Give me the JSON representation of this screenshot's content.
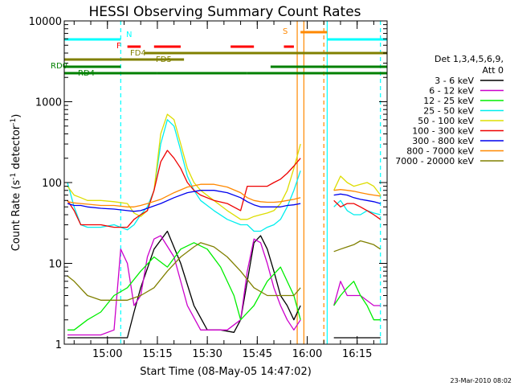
{
  "chart_data": {
    "type": "line",
    "title": "HESSI Observing Summary Count Rates",
    "xlabel": "Start Time (08-May-05 14:47:02)",
    "ylabel": "Count Rate (s⁻¹ detector⁻¹)",
    "ylabel_parts": {
      "main": "Count Rate (s",
      "exp1": "-1",
      "mid": " detector",
      "exp2": "-1",
      "end": ")"
    },
    "yscale": "log",
    "ylim": [
      1,
      10000
    ],
    "xlim": [
      "14:47:02",
      "16:24:00"
    ],
    "y_ticks": [
      {
        "value": 1,
        "label": "1"
      },
      {
        "value": 10,
        "label": "10"
      },
      {
        "value": 100,
        "label": "100"
      },
      {
        "value": 1000,
        "label": "1000"
      },
      {
        "value": 10000,
        "label": "10000"
      }
    ],
    "x_ticks": [
      {
        "value": "15:00",
        "label": "15:00"
      },
      {
        "value": "15:15",
        "label": "15:15"
      },
      {
        "value": "15:30",
        "label": "15:30"
      },
      {
        "value": "15:45",
        "label": "15:45"
      },
      {
        "value": "16:00",
        "label": "16:00"
      },
      {
        "value": "16:15",
        "label": "16:15"
      }
    ],
    "legend": {
      "placement": "right",
      "header": [
        "Det 1,3,4,5,6,9,",
        "Att 0"
      ]
    },
    "series": [
      {
        "name": "3 - 6 keV",
        "color": "#000000",
        "x": [
          "14:48",
          "14:50",
          "14:54",
          "14:58",
          "15:02",
          "15:06",
          "15:08",
          "15:10",
          "15:14",
          "15:18",
          "15:22",
          "15:26",
          "15:30",
          "15:34",
          "15:38",
          "15:40",
          "15:42",
          "15:44",
          "15:46",
          "15:48",
          "15:50",
          "15:52",
          "15:54",
          "15:56",
          "15:58",
          "16:06",
          "16:08",
          "16:10",
          "16:12",
          "16:14",
          "16:16",
          "16:18",
          "16:20",
          "16:22"
        ],
        "y": [
          1.2,
          1.2,
          1.2,
          1.2,
          1.2,
          1.2,
          2.5,
          5,
          15,
          25,
          10,
          3,
          1.5,
          1.5,
          1.4,
          2,
          6,
          18,
          22,
          15,
          8,
          4,
          3,
          2,
          3,
          null,
          1.2,
          1.2,
          1.2,
          1.2,
          1.2,
          1.2,
          1.2,
          1.2
        ]
      },
      {
        "name": "6 - 12 keV",
        "color": "#cc00cc",
        "x": [
          "14:48",
          "14:50",
          "14:54",
          "14:58",
          "15:02",
          "15:04",
          "15:06",
          "15:08",
          "15:10",
          "15:12",
          "15:14",
          "15:16",
          "15:20",
          "15:24",
          "15:28",
          "15:32",
          "15:36",
          "15:40",
          "15:42",
          "15:44",
          "15:46",
          "15:48",
          "15:50",
          "15:52",
          "15:54",
          "15:56",
          "15:58",
          "16:06",
          "16:08",
          "16:10",
          "16:12",
          "16:16",
          "16:20",
          "16:22"
        ],
        "y": [
          1.3,
          1.3,
          1.3,
          1.3,
          1.5,
          15,
          10,
          3,
          4,
          12,
          20,
          22,
          12,
          3,
          1.5,
          1.5,
          1.5,
          2,
          8,
          20,
          18,
          10,
          5,
          3,
          2,
          1.5,
          2,
          null,
          3,
          6,
          4,
          4,
          3,
          3
        ]
      },
      {
        "name": "12 - 25 keV",
        "color": "#00ee00",
        "x": [
          "14:48",
          "14:50",
          "14:54",
          "14:58",
          "15:02",
          "15:06",
          "15:10",
          "15:14",
          "15:18",
          "15:22",
          "15:26",
          "15:30",
          "15:34",
          "15:38",
          "15:40",
          "15:44",
          "15:48",
          "15:52",
          "15:56",
          "15:58",
          "16:06",
          "16:08",
          "16:10",
          "16:12",
          "16:14",
          "16:16",
          "16:18",
          "16:20",
          "16:22"
        ],
        "y": [
          1.5,
          1.5,
          2,
          2.5,
          4,
          5,
          8,
          12,
          9,
          15,
          18,
          15,
          9,
          4,
          2,
          3,
          6,
          9,
          4,
          2,
          null,
          3,
          4,
          5,
          6,
          4,
          3,
          2,
          2
        ]
      },
      {
        "name": "25 - 50 keV",
        "color": "#00eeee",
        "x": [
          "14:48",
          "14:50",
          "14:52",
          "14:54",
          "14:58",
          "15:02",
          "15:06",
          "15:08",
          "15:10",
          "15:12",
          "15:14",
          "15:16",
          "15:18",
          "15:20",
          "15:22",
          "15:24",
          "15:26",
          "15:28",
          "15:32",
          "15:36",
          "15:40",
          "15:42",
          "15:44",
          "15:46",
          "15:48",
          "15:50",
          "15:52",
          "15:54",
          "15:56",
          "15:58",
          "16:06",
          "16:08",
          "16:10",
          "16:12",
          "16:14",
          "16:16",
          "16:18",
          "16:20",
          "16:22"
        ],
        "y": [
          100,
          50,
          30,
          28,
          28,
          30,
          26,
          30,
          40,
          50,
          80,
          300,
          600,
          500,
          250,
          120,
          80,
          60,
          45,
          35,
          30,
          30,
          25,
          25,
          28,
          30,
          35,
          50,
          80,
          140,
          null,
          50,
          60,
          45,
          40,
          40,
          45,
          42,
          40
        ]
      },
      {
        "name": "50 - 100 keV",
        "color": "#dddd00",
        "x": [
          "14:48",
          "14:50",
          "14:52",
          "14:54",
          "14:58",
          "15:02",
          "15:06",
          "15:08",
          "15:10",
          "15:12",
          "15:14",
          "15:16",
          "15:18",
          "15:20",
          "15:22",
          "15:24",
          "15:26",
          "15:28",
          "15:32",
          "15:36",
          "15:40",
          "15:42",
          "15:44",
          "15:46",
          "15:48",
          "15:50",
          "15:52",
          "15:54",
          "15:56",
          "15:58",
          "16:06",
          "16:08",
          "16:10",
          "16:12",
          "16:14",
          "16:16",
          "16:18",
          "16:20",
          "16:22"
        ],
        "y": [
          90,
          70,
          65,
          60,
          60,
          58,
          55,
          42,
          38,
          45,
          80,
          400,
          700,
          600,
          300,
          150,
          100,
          80,
          60,
          45,
          35,
          35,
          38,
          40,
          42,
          45,
          55,
          80,
          150,
          300,
          null,
          80,
          120,
          100,
          90,
          95,
          100,
          90,
          70
        ]
      },
      {
        "name": "100 - 300 keV",
        "color": "#ee0000",
        "x": [
          "14:48",
          "14:50",
          "14:52",
          "14:54",
          "14:58",
          "15:02",
          "15:06",
          "15:08",
          "15:10",
          "15:12",
          "15:14",
          "15:16",
          "15:18",
          "15:20",
          "15:22",
          "15:24",
          "15:26",
          "15:28",
          "15:32",
          "15:36",
          "15:40",
          "15:42",
          "15:44",
          "15:46",
          "15:48",
          "15:50",
          "15:52",
          "15:54",
          "15:56",
          "15:58",
          "16:06",
          "16:08",
          "16:10",
          "16:12",
          "16:14",
          "16:16",
          "16:18",
          "16:20",
          "16:22"
        ],
        "y": [
          60,
          45,
          30,
          30,
          30,
          28,
          28,
          35,
          40,
          45,
          80,
          180,
          250,
          200,
          150,
          100,
          80,
          70,
          60,
          55,
          45,
          90,
          90,
          90,
          90,
          100,
          110,
          130,
          160,
          200,
          null,
          60,
          50,
          55,
          55,
          50,
          45,
          40,
          35
        ]
      },
      {
        "name": "300 - 800 keV",
        "color": "#0000ee",
        "x": [
          "14:48",
          "14:50",
          "14:52",
          "14:54",
          "14:58",
          "15:02",
          "15:06",
          "15:08",
          "15:10",
          "15:12",
          "15:16",
          "15:20",
          "15:24",
          "15:28",
          "15:32",
          "15:36",
          "15:40",
          "15:42",
          "15:44",
          "15:46",
          "15:48",
          "15:50",
          "15:52",
          "15:54",
          "15:56",
          "15:58",
          "16:06",
          "16:08",
          "16:10",
          "16:12",
          "16:14",
          "16:16",
          "16:18",
          "16:20",
          "16:22"
        ],
        "y": [
          55,
          52,
          52,
          50,
          48,
          47,
          45,
          44,
          45,
          48,
          55,
          65,
          75,
          80,
          80,
          75,
          65,
          58,
          53,
          50,
          50,
          50,
          50,
          52,
          53,
          55,
          null,
          70,
          72,
          70,
          65,
          62,
          60,
          58,
          55
        ]
      },
      {
        "name": "800 - 7000 keV",
        "color": "#ff8800",
        "x": [
          "14:48",
          "14:50",
          "14:52",
          "14:54",
          "14:58",
          "15:02",
          "15:06",
          "15:08",
          "15:10",
          "15:12",
          "15:16",
          "15:20",
          "15:24",
          "15:28",
          "15:32",
          "15:36",
          "15:40",
          "15:42",
          "15:44",
          "15:46",
          "15:48",
          "15:50",
          "15:52",
          "15:54",
          "15:56",
          "15:58",
          "16:06",
          "16:08",
          "16:10",
          "16:12",
          "16:14",
          "16:16",
          "16:18",
          "16:20",
          "16:22"
        ],
        "y": [
          58,
          56,
          55,
          54,
          52,
          52,
          50,
          50,
          52,
          55,
          62,
          75,
          88,
          95,
          95,
          88,
          75,
          65,
          60,
          58,
          57,
          57,
          58,
          60,
          62,
          65,
          null,
          80,
          82,
          80,
          78,
          75,
          72,
          70,
          68
        ]
      },
      {
        "name": "7000 - 20000 keV",
        "color": "#808000",
        "x": [
          "14:48",
          "14:50",
          "14:54",
          "14:58",
          "15:02",
          "15:06",
          "15:10",
          "15:14",
          "15:18",
          "15:22",
          "15:26",
          "15:28",
          "15:32",
          "15:36",
          "15:40",
          "15:44",
          "15:48",
          "15:52",
          "15:56",
          "15:58",
          "16:06",
          "16:08",
          "16:10",
          "16:12",
          "16:14",
          "16:16",
          "16:18",
          "16:20",
          "16:22"
        ],
        "y": [
          7,
          6,
          4,
          3.5,
          3.5,
          3.5,
          4,
          5,
          8,
          12,
          16,
          18,
          16,
          12,
          8,
          5,
          4,
          4,
          4,
          5,
          null,
          14,
          15,
          16,
          17,
          19,
          18,
          17,
          15
        ]
      }
    ],
    "flag_bars": [
      {
        "label": "N",
        "color": "#00ffff",
        "segments": [
          [
            "14:47:02",
            "15:04"
          ],
          [
            "16:06",
            "16:24"
          ]
        ]
      },
      {
        "label": "F",
        "color": "#ff0000",
        "segments": [
          [
            "15:06",
            "15:10"
          ],
          [
            "15:14",
            "15:22"
          ],
          [
            "15:37",
            "15:44"
          ],
          [
            "15:53",
            "15:56"
          ]
        ]
      },
      {
        "label": "S",
        "color": "#ff8800",
        "segments": [
          [
            "15:58",
            "16:06"
          ]
        ]
      },
      {
        "label": "FD4",
        "color": "#808000",
        "segments": [
          [
            "15:11",
            "16:24"
          ]
        ]
      },
      {
        "label": "FD5",
        "color": "#808000",
        "segments": [
          [
            "14:47:02",
            "15:23"
          ]
        ]
      },
      {
        "label": "RD0",
        "color": "#008000",
        "segments": [
          [
            "14:47:02",
            "15:04"
          ],
          [
            "15:49",
            "16:24"
          ]
        ]
      },
      {
        "label": "RD4",
        "color": "#008000",
        "segments": [
          [
            "14:47:02",
            "15:15"
          ],
          [
            "15:15",
            "15:42"
          ],
          [
            "15:42",
            "16:05"
          ],
          [
            "16:05",
            "16:24"
          ]
        ]
      }
    ],
    "vertical_markers": [
      {
        "x": "15:04",
        "color": "#00ffff",
        "style": "dashed"
      },
      {
        "x": "15:57",
        "color": "#ff8800",
        "style": "solid"
      },
      {
        "x": "15:59",
        "color": "#ff8800",
        "style": "solid"
      },
      {
        "x": "16:05",
        "color": "#ff8800",
        "style": "dashed"
      },
      {
        "x": "16:06",
        "color": "#00ffff",
        "style": "solid"
      },
      {
        "x": "16:22",
        "color": "#00ffff",
        "style": "dashed"
      }
    ],
    "grid": false
  },
  "footer": {
    "stamp": "23-Mar-2010 08:02"
  }
}
